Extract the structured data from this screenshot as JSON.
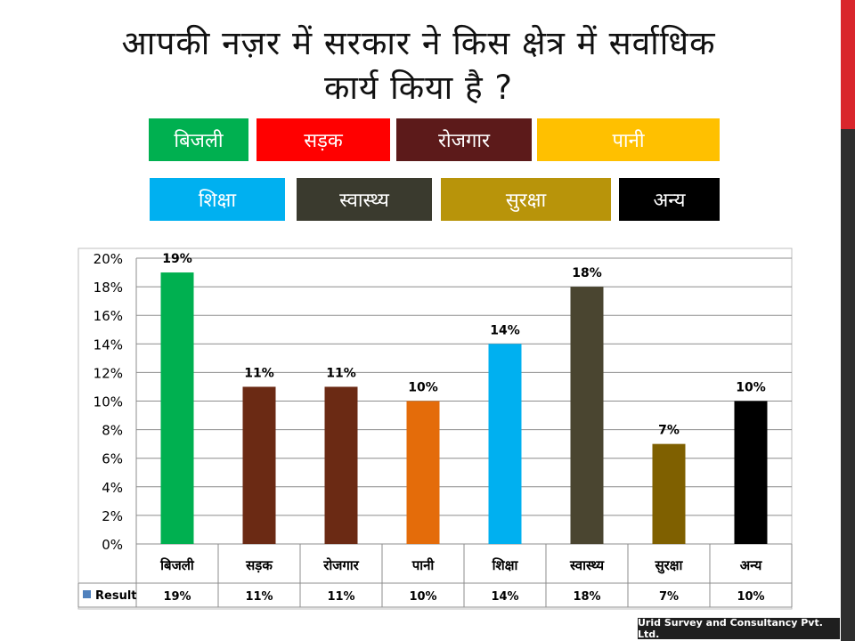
{
  "title_line1": "आपकी नज़र में सरकार ने किस क्षेत्र में सर्वाधिक",
  "title_line2": "कार्य किया है ?",
  "legend": [
    {
      "label": "बिजली",
      "color": "#00b050"
    },
    {
      "label": "सड़क",
      "color": "#ff0000"
    },
    {
      "label": "रोजगार",
      "color": "#5c1a1a"
    },
    {
      "label": "पानी",
      "color": "#ffc000"
    },
    {
      "label": "शिक्षा",
      "color": "#00b0f0"
    },
    {
      "label": "स्वास्थ्य",
      "color": "#3a3a2e"
    },
    {
      "label": "सुरक्षा",
      "color": "#b8940a"
    },
    {
      "label": "अन्य",
      "color": "#000000"
    }
  ],
  "chart_data": {
    "type": "bar",
    "categories": [
      "बिजली",
      "सड़क",
      "रोजगार",
      "पानी",
      "शिक्षा",
      "स्वास्थ्य",
      "सुरक्षा",
      "अन्य"
    ],
    "series": [
      {
        "name": "Result",
        "values": [
          19,
          11,
          11,
          10,
          14,
          18,
          7,
          10
        ]
      }
    ],
    "value_labels": [
      "19%",
      "11%",
      "11%",
      "10%",
      "14%",
      "18%",
      "7%",
      "10%"
    ],
    "bar_colors": [
      "#00b050",
      "#6b2a14",
      "#6b2a14",
      "#e46c0a",
      "#00b0f0",
      "#4a4530",
      "#7f6000",
      "#000000"
    ],
    "y_ticks": [
      "0%",
      "2%",
      "4%",
      "6%",
      "8%",
      "10%",
      "12%",
      "14%",
      "16%",
      "18%",
      "20%"
    ],
    "ylim": [
      0,
      20
    ],
    "grid": true,
    "data_table": true
  },
  "footer": "Urid Survey and Consultancy Pvt. Ltd."
}
